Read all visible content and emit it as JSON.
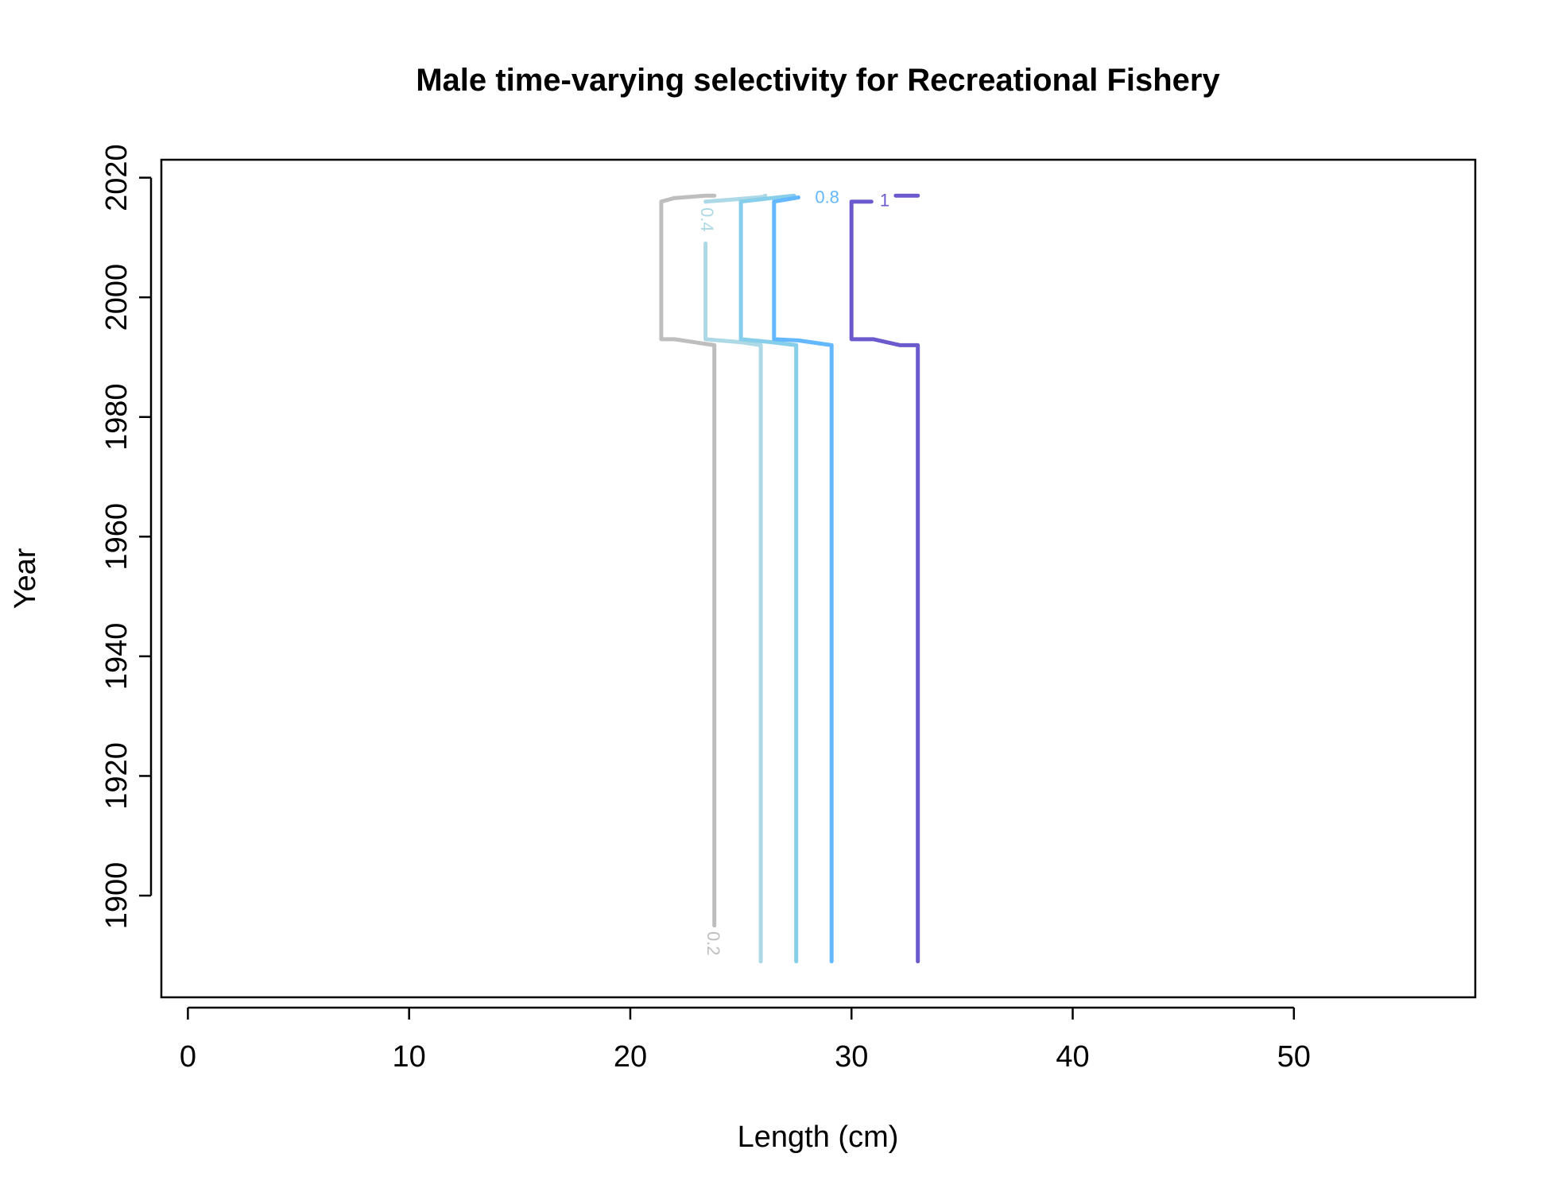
{
  "chart_data": {
    "type": "line",
    "subtype": "contour",
    "title": "Male time-varying selectivity for Recreational Fishery",
    "xlabel": "Length (cm)",
    "ylabel": "Year",
    "xlim": [
      -1.2,
      58.2
    ],
    "ylim": [
      1883,
      2023
    ],
    "x_ticks": [
      0,
      10,
      20,
      30,
      40,
      50
    ],
    "y_ticks": [
      1900,
      1920,
      1940,
      1960,
      1980,
      2000,
      2020
    ],
    "grid": false,
    "legend": "none",
    "series": [
      {
        "level": "0.2",
        "color": "#BEBEBE",
        "label_point": {
          "x": 23.7,
          "y": 1892
        },
        "label_rotated": true,
        "segments": [
          [
            [
              23.8,
              1895
            ],
            [
              23.8,
              1992
            ],
            [
              22.0,
              1993
            ],
            [
              21.4,
              1993
            ],
            [
              21.4,
              2016
            ],
            [
              22.0,
              2016.6
            ],
            [
              23.4,
              2017
            ],
            [
              23.8,
              2017
            ]
          ]
        ]
      },
      {
        "level": "0.4",
        "color": "#ADD8E6",
        "label_point": {
          "x": 23.4,
          "y": 2013
        },
        "label_rotated": true,
        "segments": [
          [
            [
              25.9,
              1889
            ],
            [
              25.9,
              1992
            ],
            [
              25.0,
              1992.5
            ],
            [
              23.4,
              1993
            ],
            [
              23.4,
              2009
            ]
          ],
          [
            [
              23.4,
              2016
            ],
            [
              24.8,
              2016.4
            ],
            [
              26.0,
              2016.8
            ],
            [
              26.1,
              2017
            ]
          ]
        ]
      },
      {
        "level": "0.6",
        "color": "#87CEEB",
        "label_point": null,
        "label_rotated": false,
        "segments": [
          [
            [
              27.5,
              1889
            ],
            [
              27.5,
              1992
            ],
            [
              26.4,
              1992.5
            ],
            [
              25.0,
              1993
            ],
            [
              25.0,
              2016
            ],
            [
              26.4,
              2016.6
            ],
            [
              27.4,
              2017
            ]
          ]
        ]
      },
      {
        "level": "0.8",
        "color": "#63B8FF",
        "label_point": {
          "x": 28.9,
          "y": 2016.5
        },
        "label_rotated": false,
        "segments": [
          [
            [
              29.1,
              1889
            ],
            [
              29.1,
              1992
            ],
            [
              27.6,
              1992.8
            ],
            [
              26.5,
              1993
            ],
            [
              26.5,
              2016
            ],
            [
              27.3,
              2016.5
            ],
            [
              27.6,
              2016.7
            ]
          ]
        ]
      },
      {
        "level": "1",
        "color": "#6A5ACD",
        "label_point": {
          "x": 31.5,
          "y": 2016
        },
        "label_rotated": false,
        "segments": [
          [
            [
              33.0,
              1889
            ],
            [
              33.0,
              1992
            ],
            [
              32.2,
              1992
            ],
            [
              31.0,
              1993
            ],
            [
              30.0,
              1993
            ],
            [
              30.0,
              2016
            ],
            [
              30.9,
              2016
            ]
          ],
          [
            [
              32.0,
              2017
            ],
            [
              33.0,
              2017
            ]
          ]
        ]
      }
    ]
  }
}
